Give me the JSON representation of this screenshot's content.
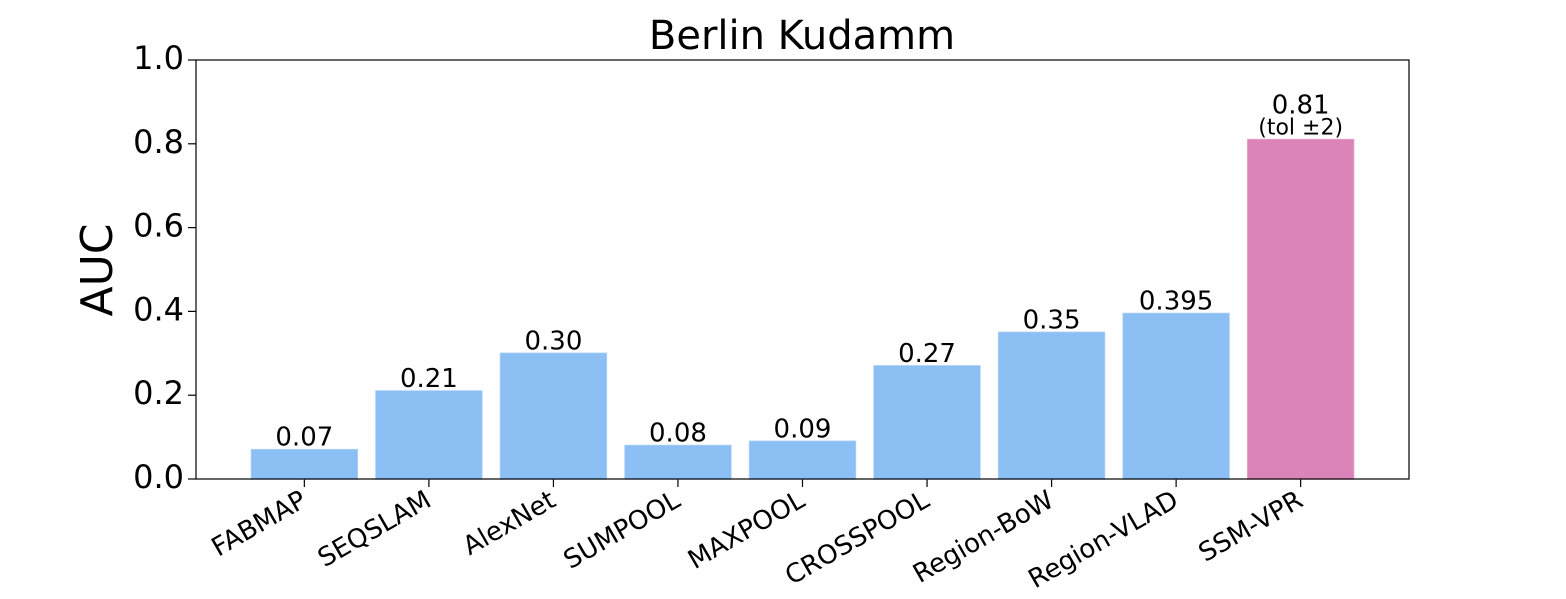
{
  "chart_data": {
    "type": "bar",
    "title": "Berlin Kudamm",
    "y_label": "AUC",
    "categories": [
      "FABMAP",
      "SEQSLAM",
      "AlexNet",
      "SUMPOOL",
      "MAXPOOL",
      "CROSSPOOL",
      "Region-BoW",
      "Region-VLAD",
      "SSM-VPR"
    ],
    "values": [
      0.07,
      0.21,
      0.3,
      0.08,
      0.09,
      0.27,
      0.35,
      0.395,
      0.81
    ],
    "value_labels": [
      "0.07",
      "0.21",
      "0.30",
      "0.08",
      "0.09",
      "0.27",
      "0.35",
      "0.395",
      "0.81"
    ],
    "colors": [
      "#90c5fb",
      "#90c5fb",
      "#90c5fb",
      "#90c5fb",
      "#90c5fb",
      "#90c5fb",
      "#90c5fb",
      "#90c5fb",
      "#e288c0"
    ],
    "annotation": "(tol ±2)",
    "ylim": [
      0,
      1
    ],
    "yticks": [
      {
        "value": 0,
        "label": "0.0"
      },
      0.2,
      0.4,
      0.6,
      0.8,
      {
        "value": 1,
        "label": "1.0"
      }
    ],
    "grid": false
  }
}
